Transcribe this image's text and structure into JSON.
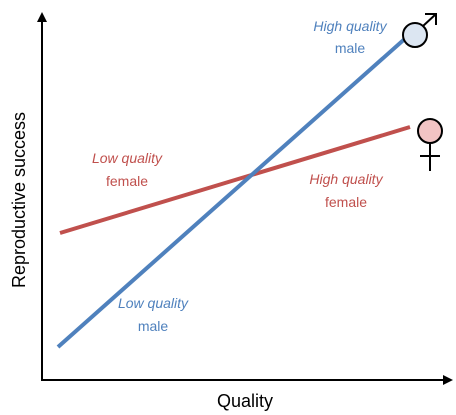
{
  "axes": {
    "x_label": "Quality",
    "y_label": "Reproductive success"
  },
  "labels": [
    {
      "quality": "High quality",
      "sex": "male"
    },
    {
      "quality": "Low quality",
      "sex": "female"
    },
    {
      "quality": "High quality",
      "sex": "female"
    },
    {
      "quality": "Low quality",
      "sex": "male"
    }
  ]
}
